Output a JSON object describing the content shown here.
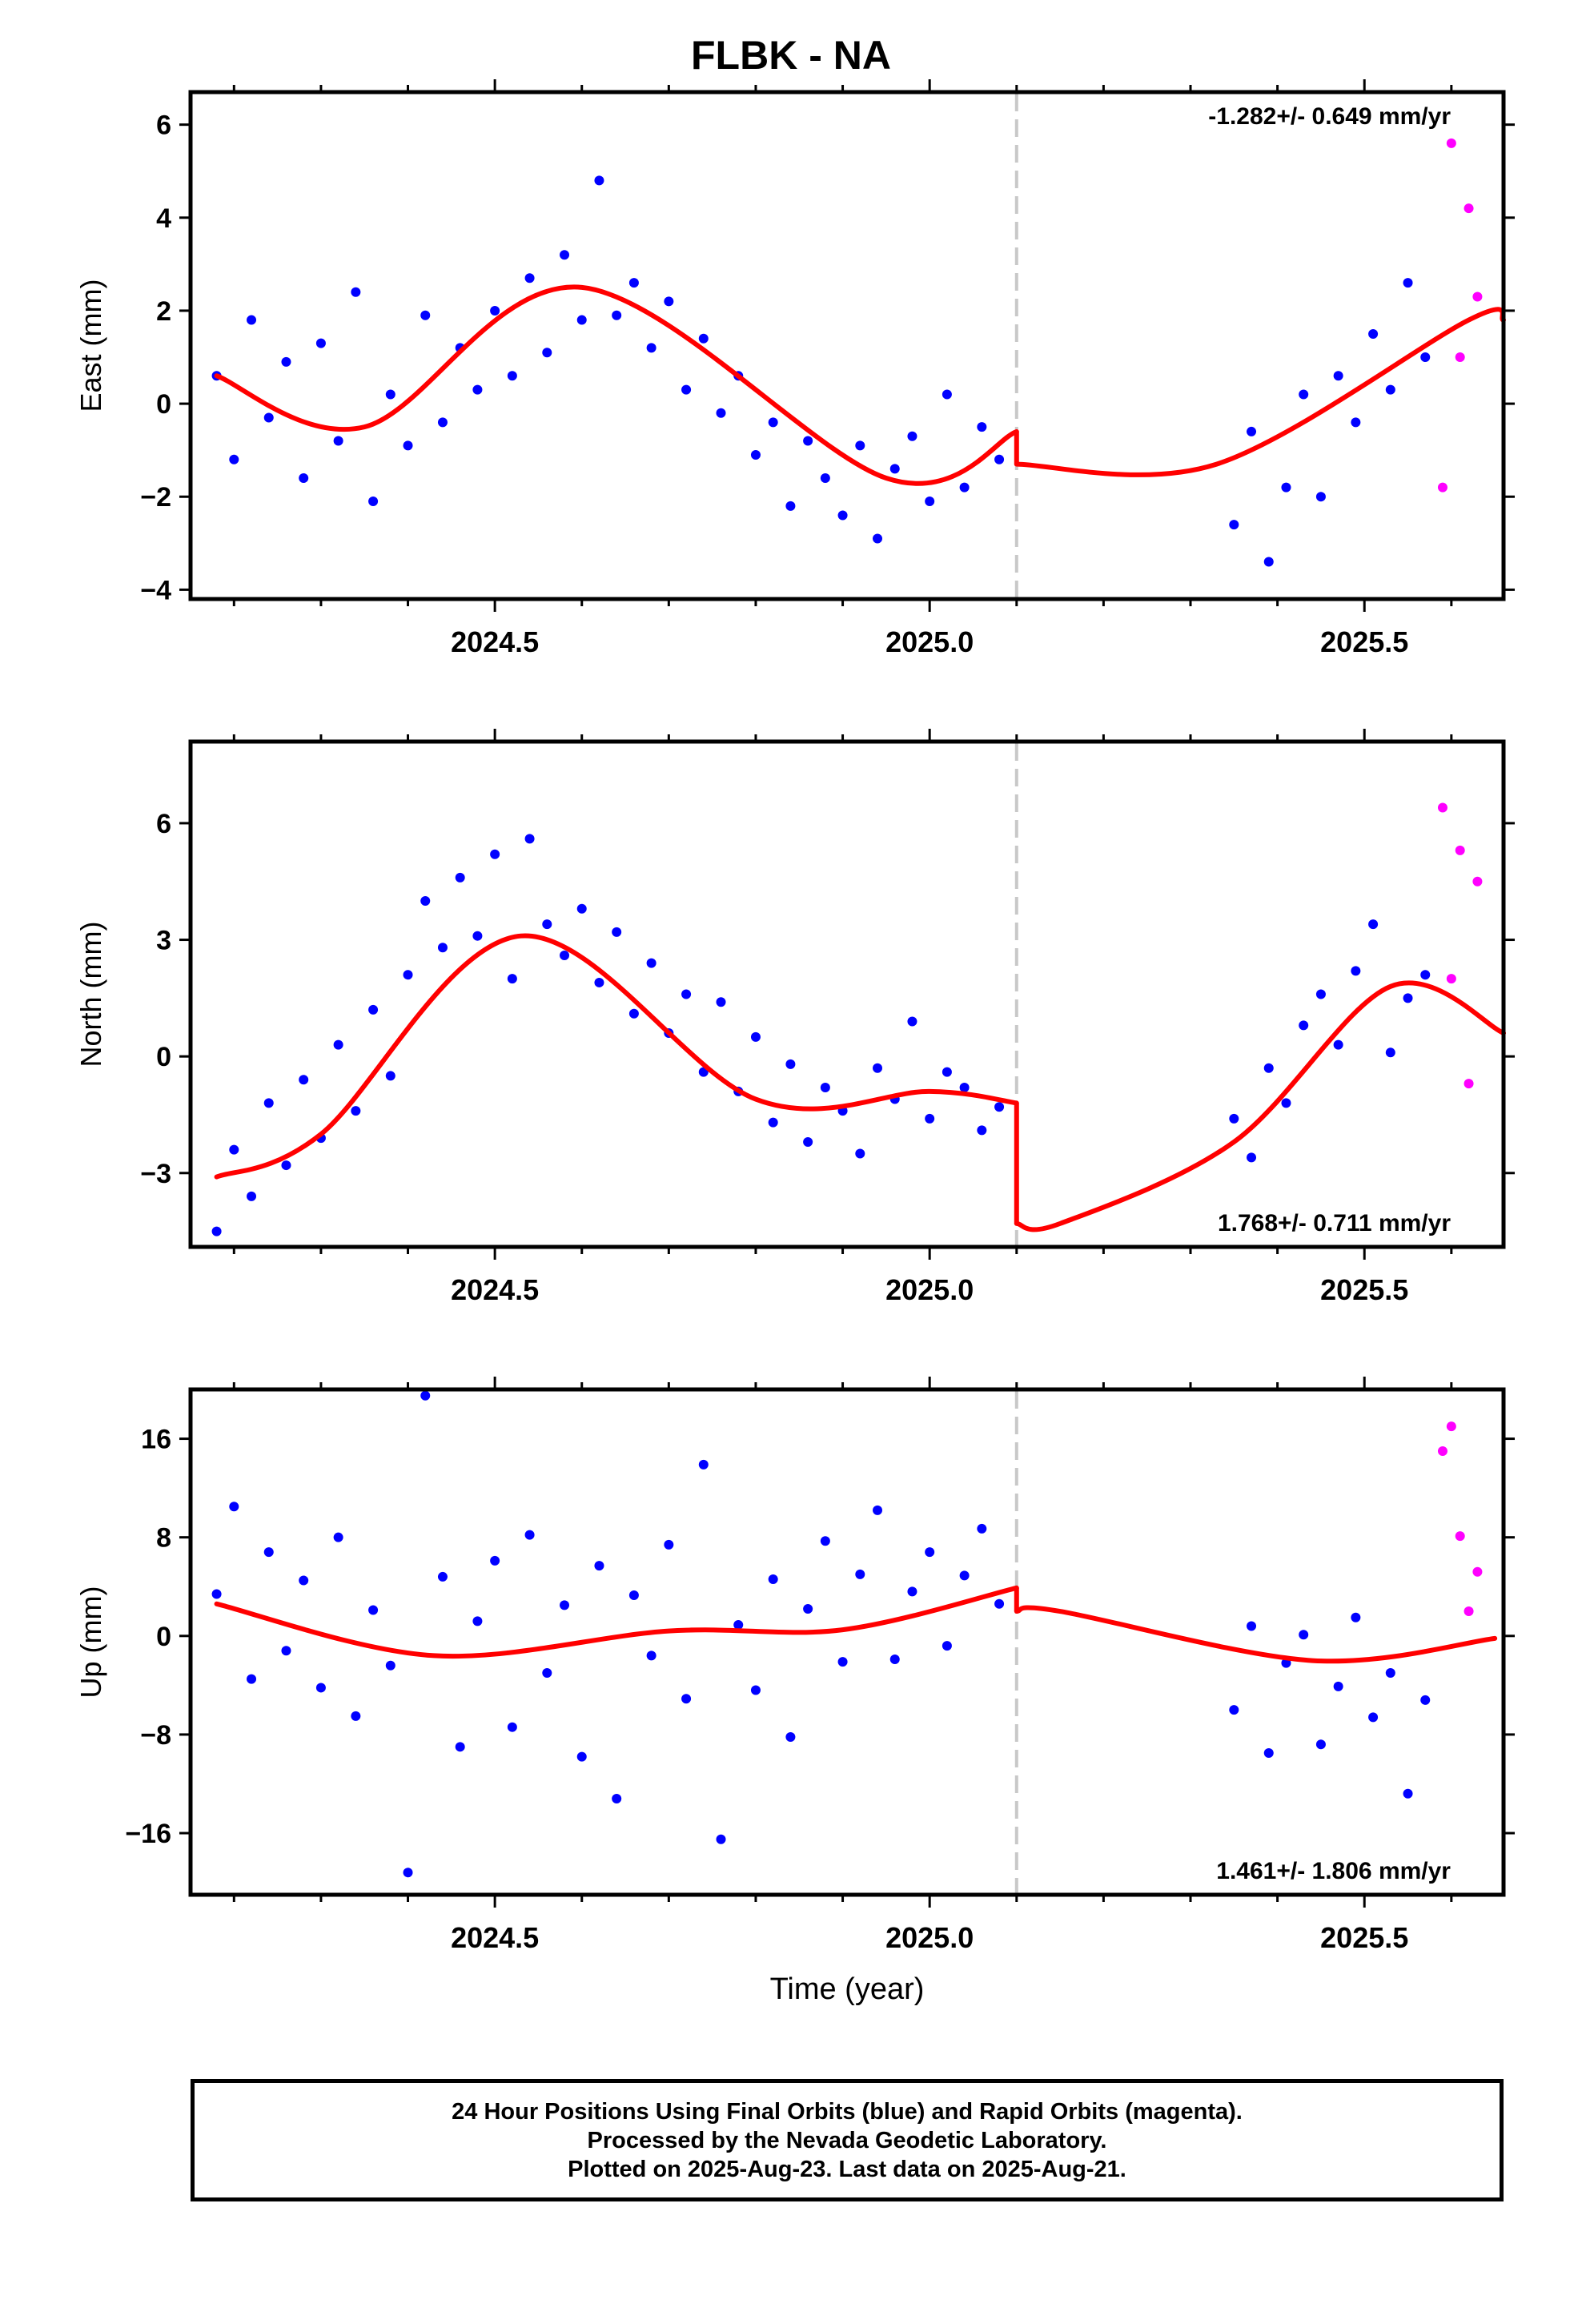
{
  "title": "FLBK - NA",
  "footer": {
    "line1": "24 Hour Positions Using Final Orbits (blue) and Rapid Orbits (magenta).",
    "line2": "Processed by the Nevada Geodetic Laboratory.",
    "line3": "Plotted on 2025-Aug-23. Last data on 2025-Aug-21."
  },
  "colors": {
    "final": "#0000ff",
    "rapid": "#ff00ff",
    "model": "#ff0000",
    "break_line": "#c8c8c8",
    "frame": "#000000"
  },
  "chart_data": [
    {
      "type": "scatter",
      "component": "east",
      "ylabel": "East (mm)",
      "xlabel": "",
      "xlim": [
        2024.15,
        2025.66
      ],
      "ylim": [
        -4.2,
        6.7
      ],
      "yticks": [
        -4,
        -2,
        0,
        2,
        4,
        6
      ],
      "ytick_labels": [
        "−4",
        "−2",
        "0",
        "2",
        "4",
        "6"
      ],
      "xticks": [
        2024.5,
        2025.0,
        2025.5
      ],
      "xtick_labels": [
        "2024.5",
        "2025.0",
        "2025.5"
      ],
      "rate_label": "-1.282+/- 0.649 mm/yr",
      "rate_position": "top-right",
      "break_epoch": 2025.1,
      "series": [
        {
          "role": "final",
          "x": [
            2024.18,
            2024.2,
            2024.22,
            2024.24,
            2024.26,
            2024.28,
            2024.3,
            2024.32,
            2024.34,
            2024.36,
            2024.38,
            2024.4,
            2024.42,
            2024.44,
            2024.46,
            2024.48,
            2024.5,
            2024.52,
            2024.54,
            2024.56,
            2024.58,
            2024.6,
            2024.62,
            2024.64,
            2024.66,
            2024.68,
            2024.7,
            2024.72,
            2024.74,
            2024.76,
            2024.78,
            2024.8,
            2024.82,
            2024.84,
            2024.86,
            2024.88,
            2024.9,
            2024.92,
            2024.94,
            2024.96,
            2024.98,
            2025.0,
            2025.02,
            2025.04,
            2025.06,
            2025.08,
            2025.35,
            2025.37,
            2025.39,
            2025.41,
            2025.43,
            2025.45,
            2025.47,
            2025.49,
            2025.51,
            2025.53,
            2025.55,
            2025.57
          ],
          "y": [
            0.6,
            -1.2,
            1.8,
            -0.3,
            0.9,
            -1.6,
            1.3,
            -0.8,
            2.4,
            -2.1,
            0.2,
            -0.9,
            1.9,
            -0.4,
            1.2,
            0.3,
            2.0,
            0.6,
            2.7,
            1.1,
            3.2,
            1.8,
            4.8,
            1.9,
            2.6,
            1.2,
            2.2,
            0.3,
            1.4,
            -0.2,
            0.6,
            -1.1,
            -0.4,
            -2.2,
            -0.8,
            -1.6,
            -2.4,
            -0.9,
            -2.9,
            -1.4,
            -0.7,
            -2.1,
            0.2,
            -1.8,
            -0.5,
            -1.2,
            -2.6,
            -0.6,
            -3.4,
            -1.8,
            0.2,
            -2.0,
            0.6,
            -0.4,
            1.5,
            0.3,
            2.6,
            1.0
          ]
        },
        {
          "role": "rapid",
          "x": [
            2025.59,
            2025.6,
            2025.61,
            2025.62,
            2025.63
          ],
          "y": [
            -1.8,
            5.6,
            1.0,
            4.2,
            2.3
          ]
        },
        {
          "role": "model",
          "x": [
            2024.18,
            2024.35,
            2024.6,
            2024.95,
            2025.1,
            2025.33,
            2025.62,
            2025.66
          ],
          "y": [
            0.6,
            -0.5,
            2.5,
            -1.6,
            -0.6,
            -1.3,
            1.8,
            1.8
          ]
        }
      ]
    },
    {
      "type": "scatter",
      "component": "north",
      "ylabel": "North (mm)",
      "xlabel": "",
      "xlim": [
        2024.15,
        2025.66
      ],
      "ylim": [
        -4.9,
        8.1
      ],
      "yticks": [
        -3,
        0,
        3,
        6
      ],
      "ytick_labels": [
        "−3",
        "0",
        "3",
        "6"
      ],
      "xticks": [
        2024.5,
        2025.0,
        2025.5
      ],
      "xtick_labels": [
        "2024.5",
        "2025.0",
        "2025.5"
      ],
      "rate_label": "1.768+/- 0.711 mm/yr",
      "rate_position": "bottom-right",
      "break_epoch": 2025.1,
      "series": [
        {
          "role": "final",
          "x": [
            2024.18,
            2024.2,
            2024.22,
            2024.24,
            2024.26,
            2024.28,
            2024.3,
            2024.32,
            2024.34,
            2024.36,
            2024.38,
            2024.4,
            2024.42,
            2024.44,
            2024.46,
            2024.48,
            2024.5,
            2024.52,
            2024.54,
            2024.56,
            2024.58,
            2024.6,
            2024.62,
            2024.64,
            2024.66,
            2024.68,
            2024.7,
            2024.72,
            2024.74,
            2024.76,
            2024.78,
            2024.8,
            2024.82,
            2024.84,
            2024.86,
            2024.88,
            2024.9,
            2024.92,
            2024.94,
            2024.96,
            2024.98,
            2025.0,
            2025.02,
            2025.04,
            2025.06,
            2025.08,
            2025.35,
            2025.37,
            2025.39,
            2025.41,
            2025.43,
            2025.45,
            2025.47,
            2025.49,
            2025.51,
            2025.53,
            2025.55,
            2025.57
          ],
          "y": [
            -4.5,
            -2.4,
            -3.6,
            -1.2,
            -2.8,
            -0.6,
            -2.1,
            0.3,
            -1.4,
            1.2,
            -0.5,
            2.1,
            4.0,
            2.8,
            4.6,
            3.1,
            5.2,
            2.0,
            5.6,
            3.4,
            2.6,
            3.8,
            1.9,
            3.2,
            1.1,
            2.4,
            0.6,
            1.6,
            -0.4,
            1.4,
            -0.9,
            0.5,
            -1.7,
            -0.2,
            -2.2,
            -0.8,
            -1.4,
            -2.5,
            -0.3,
            -1.1,
            0.9,
            -1.6,
            -0.4,
            -0.8,
            -1.9,
            -1.3,
            -1.6,
            -2.6,
            -0.3,
            -1.2,
            0.8,
            1.6,
            0.3,
            2.2,
            3.4,
            0.1,
            1.5,
            2.1
          ]
        },
        {
          "role": "rapid",
          "x": [
            2025.59,
            2025.6,
            2025.61,
            2025.62,
            2025.63
          ],
          "y": [
            6.4,
            2.0,
            5.3,
            -0.7,
            4.5
          ]
        },
        {
          "role": "model",
          "x": [
            2024.18,
            2024.3,
            2024.53,
            2024.8,
            2025.0,
            2025.1,
            2025.15,
            2025.35,
            2025.53,
            2025.66
          ],
          "y": [
            -3.1,
            -2.0,
            3.1,
            -1.1,
            -0.9,
            -1.2,
            -4.3,
            -2.2,
            1.8,
            0.6
          ]
        }
      ]
    },
    {
      "type": "scatter",
      "component": "up",
      "ylabel": "Up (mm)",
      "xlabel": "Time (year)",
      "xlim": [
        2024.15,
        2025.66
      ],
      "ylim": [
        -21,
        20
      ],
      "yticks": [
        -16,
        -8,
        0,
        8,
        16
      ],
      "ytick_labels": [
        "−16",
        "−8",
        "0",
        "8",
        "16"
      ],
      "xticks": [
        2024.5,
        2025.0,
        2025.5
      ],
      "xtick_labels": [
        "2024.5",
        "2025.0",
        "2025.5"
      ],
      "rate_label": "1.461+/- 1.806 mm/yr",
      "rate_position": "bottom-right",
      "break_epoch": 2025.1,
      "series": [
        {
          "role": "final",
          "x": [
            2024.18,
            2024.2,
            2024.22,
            2024.24,
            2024.26,
            2024.28,
            2024.3,
            2024.32,
            2024.34,
            2024.36,
            2024.38,
            2024.4,
            2024.42,
            2024.44,
            2024.46,
            2024.48,
            2024.5,
            2024.52,
            2024.54,
            2024.56,
            2024.58,
            2024.6,
            2024.62,
            2024.64,
            2024.66,
            2024.68,
            2024.7,
            2024.72,
            2024.74,
            2024.76,
            2024.78,
            2024.8,
            2024.82,
            2024.84,
            2024.86,
            2024.88,
            2024.9,
            2024.92,
            2024.94,
            2024.96,
            2024.98,
            2025.0,
            2025.02,
            2025.04,
            2025.06,
            2025.08,
            2025.35,
            2025.37,
            2025.39,
            2025.41,
            2025.43,
            2025.45,
            2025.47,
            2025.49,
            2025.51,
            2025.53,
            2025.55,
            2025.57
          ],
          "y": [
            3.4,
            10.5,
            -3.5,
            6.8,
            -1.2,
            4.5,
            -4.2,
            8.0,
            -6.5,
            2.1,
            -2.4,
            -19.2,
            19.5,
            4.8,
            -9.0,
            1.2,
            6.1,
            -7.4,
            8.2,
            -3.0,
            2.5,
            -9.8,
            5.7,
            -13.2,
            3.3,
            -1.6,
            7.4,
            -5.1,
            13.9,
            -16.5,
            0.9,
            -4.4,
            4.6,
            -8.2,
            2.2,
            7.7,
            -2.1,
            5.0,
            10.2,
            -1.9,
            3.6,
            6.8,
            -0.8,
            4.9,
            8.7,
            2.6,
            -6.0,
            0.8,
            -9.5,
            -2.2,
            0.1,
            -8.8,
            -4.1,
            1.5,
            -6.6,
            -3.0,
            -12.8,
            -5.2
          ]
        },
        {
          "role": "rapid",
          "x": [
            2025.59,
            2025.6,
            2025.61,
            2025.62,
            2025.63
          ],
          "y": [
            15.0,
            17.0,
            8.1,
            2.0,
            5.2
          ]
        },
        {
          "role": "model",
          "x": [
            2024.18,
            2024.43,
            2024.7,
            2024.9,
            2025.1,
            2025.15,
            2025.44,
            2025.65
          ],
          "y": [
            2.6,
            -1.6,
            0.4,
            0.5,
            3.9,
            2.0,
            -2.0,
            -0.2
          ]
        }
      ]
    }
  ]
}
